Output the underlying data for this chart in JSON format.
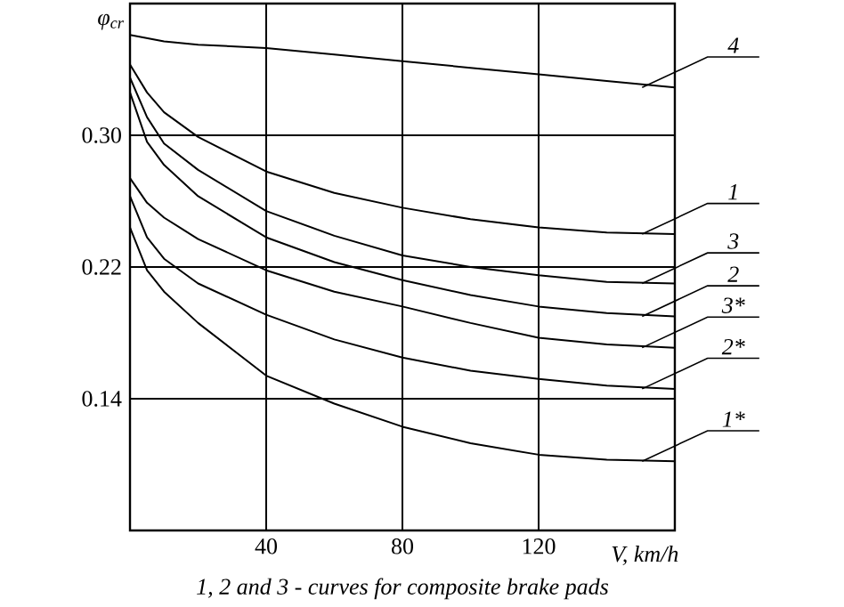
{
  "chart_data": {
    "type": "line",
    "xlabel": "V, km/h",
    "ylabel": "φ$_{cr}$",
    "annotations": [
      "1, 2 and 3 - curves for composite brake pads"
    ],
    "x": [
      0,
      5,
      10,
      20,
      40,
      60,
      80,
      100,
      120,
      140,
      160
    ],
    "xlim": [
      0,
      160
    ],
    "xticks": [
      40,
      80,
      120
    ],
    "ylim": [
      0.06,
      0.38
    ],
    "yticks": [
      0.14,
      0.22,
      {
        "value": 0.3,
        "label": "0.30"
      }
    ],
    "grid": true,
    "marker": "none",
    "line_style": "solid",
    "series": [
      {
        "name": "4",
        "color": "#000000",
        "values": [
          0.361,
          0.359,
          0.357,
          0.355,
          0.353,
          0.349,
          0.345,
          0.341,
          0.337,
          0.333,
          0.329
        ]
      },
      {
        "name": "1",
        "color": "#000000",
        "values": [
          0.343,
          0.326,
          0.314,
          0.299,
          0.278,
          0.265,
          0.256,
          0.249,
          0.244,
          0.241,
          0.24
        ]
      },
      {
        "name": "3",
        "color": "#000000",
        "values": [
          0.335,
          0.311,
          0.295,
          0.279,
          0.254,
          0.239,
          0.227,
          0.22,
          0.215,
          0.211,
          0.21
        ]
      },
      {
        "name": "2",
        "color": "#000000",
        "values": [
          0.326,
          0.296,
          0.282,
          0.263,
          0.238,
          0.223,
          0.212,
          0.203,
          0.196,
          0.192,
          0.19
        ]
      },
      {
        "name": "3*",
        "color": "#000000",
        "values": [
          0.274,
          0.259,
          0.25,
          0.237,
          0.218,
          0.205,
          0.196,
          0.186,
          0.177,
          0.173,
          0.171
        ]
      },
      {
        "name": "2*",
        "color": "#000000",
        "values": [
          0.263,
          0.238,
          0.225,
          0.21,
          0.191,
          0.176,
          0.165,
          0.157,
          0.152,
          0.148,
          0.146
        ]
      },
      {
        "name": "1*",
        "color": "#000000",
        "values": [
          0.244,
          0.218,
          0.205,
          0.186,
          0.154,
          0.137,
          0.123,
          0.113,
          0.106,
          0.103,
          0.102
        ]
      }
    ]
  }
}
